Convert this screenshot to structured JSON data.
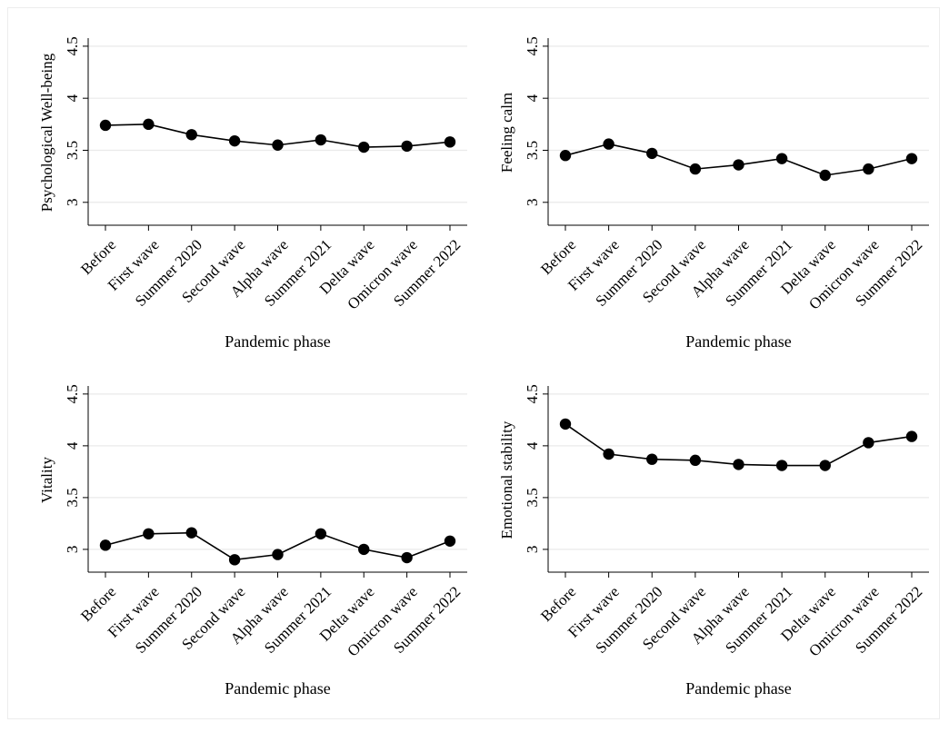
{
  "chart_data": [
    {
      "type": "line",
      "ylabel": "Psychological Well-being",
      "xlabel": "Pandemic phase",
      "ylim": [
        2.78,
        4.56
      ],
      "yticks": [
        "3",
        "3.5",
        "4",
        "4.5"
      ],
      "grid": true,
      "categories": [
        "Before",
        "First wave",
        "Summer 2020",
        "Second wave",
        "Alpha wave",
        "Summer 2021",
        "Delta wave",
        "Omicron wave",
        "Summer 2022"
      ],
      "series": [
        {
          "values": [
            3.74,
            3.75,
            3.65,
            3.59,
            3.55,
            3.6,
            3.53,
            3.54,
            3.58
          ]
        }
      ]
    },
    {
      "type": "line",
      "ylabel": "Feeling calm",
      "xlabel": "Pandemic phase",
      "ylim": [
        2.78,
        4.56
      ],
      "yticks": [
        "3",
        "3.5",
        "4",
        "4.5"
      ],
      "grid": true,
      "categories": [
        "Before",
        "First wave",
        "Summer 2020",
        "Second wave",
        "Alpha wave",
        "Summer 2021",
        "Delta wave",
        "Omicron wave",
        "Summer 2022"
      ],
      "series": [
        {
          "values": [
            3.45,
            3.56,
            3.47,
            3.32,
            3.36,
            3.42,
            3.26,
            3.32,
            3.42
          ]
        }
      ]
    },
    {
      "type": "line",
      "ylabel": "Vitality",
      "xlabel": "Pandemic phase",
      "ylim": [
        2.78,
        4.56
      ],
      "yticks": [
        "3",
        "3.5",
        "4",
        "4.5"
      ],
      "grid": true,
      "categories": [
        "Before",
        "First wave",
        "Summer 2020",
        "Second wave",
        "Alpha wave",
        "Summer 2021",
        "Delta wave",
        "Omicron wave",
        "Summer 2022"
      ],
      "series": [
        {
          "values": [
            3.04,
            3.15,
            3.16,
            2.9,
            2.95,
            3.15,
            3.0,
            2.92,
            3.08
          ]
        }
      ]
    },
    {
      "type": "line",
      "ylabel": "Emotional stability",
      "xlabel": "Pandemic phase",
      "ylim": [
        2.78,
        4.56
      ],
      "yticks": [
        "3",
        "3.5",
        "4",
        "4.5"
      ],
      "grid": true,
      "categories": [
        "Before",
        "First wave",
        "Summer 2020",
        "Second wave",
        "Alpha wave",
        "Summer 2021",
        "Delta wave",
        "Omicron wave",
        "Summer 2022"
      ],
      "series": [
        {
          "values": [
            4.21,
            3.92,
            3.87,
            3.86,
            3.82,
            3.81,
            3.81,
            4.03,
            4.09
          ]
        }
      ]
    }
  ],
  "colors": {
    "line": "#000000",
    "grid": "#eaeaea",
    "axis": "#000000"
  }
}
